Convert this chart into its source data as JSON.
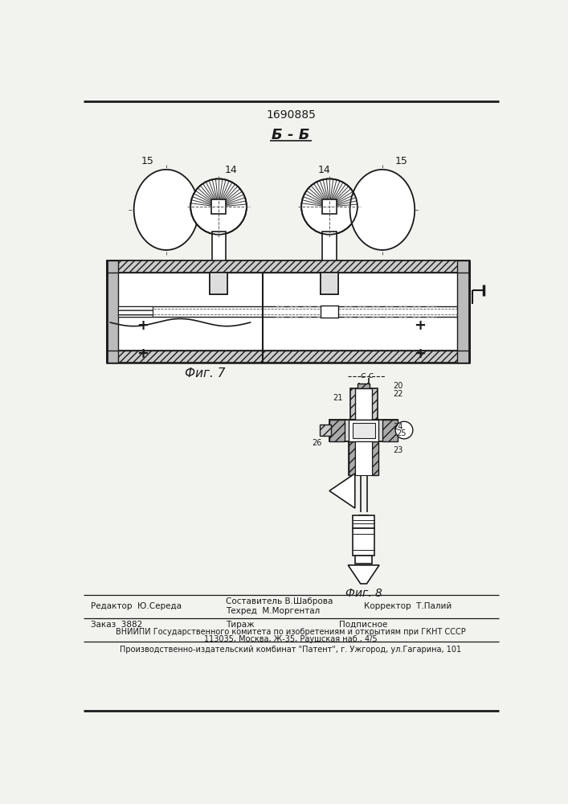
{
  "patent_number": "1690885",
  "bg_color": "#f2f2ee",
  "line_color": "#1a1a1a",
  "editor": "Редактор  Ю.Середа",
  "composer": "Составитель В.Шаброва",
  "tech": "Техред  М.Моргентал",
  "corrector": "Корректор  Т.Палий",
  "order": "Заказ  3882",
  "tirazh": "Тираж",
  "podpisnoe": "Подписное",
  "vnipi_line1": "ВНИИПИ Государственного комитета по изобретениям и открытиям при ГКНТ СССР",
  "vnipi_line2": "113035, Москва, Ж-35, Раушская наб., 4/5",
  "publisher": "Производственно-издательский комбинат \"Патент\", г. Ужгород, ул.Гагарина, 101"
}
